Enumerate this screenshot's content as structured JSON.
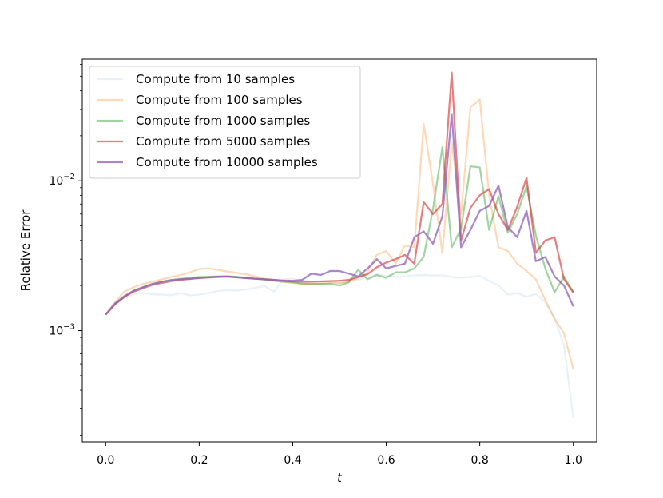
{
  "chart_data": {
    "type": "line",
    "title": "",
    "xlabel": "t",
    "ylabel": "Relative Error",
    "yscale": "log",
    "xlim": [
      -0.05,
      1.05
    ],
    "ylim": [
      0.00018,
      0.065
    ],
    "xticks": [
      0.0,
      0.2,
      0.4,
      0.6,
      0.8,
      1.0
    ],
    "xtick_labels": [
      "0.0",
      "0.2",
      "0.4",
      "0.6",
      "0.8",
      "1.0"
    ],
    "yticks": [
      0.001,
      0.01
    ],
    "ytick_labels": [
      {
        "base": "10",
        "exp": "−3"
      },
      {
        "base": "10",
        "exp": "−2"
      }
    ],
    "grid": false,
    "legend_position": "top-left",
    "x": [
      0.0,
      0.02,
      0.04,
      0.06,
      0.08,
      0.1,
      0.12,
      0.14,
      0.16,
      0.18,
      0.2,
      0.22,
      0.24,
      0.26,
      0.28,
      0.3,
      0.32,
      0.34,
      0.36,
      0.38,
      0.4,
      0.42,
      0.44,
      0.46,
      0.48,
      0.5,
      0.52,
      0.54,
      0.56,
      0.58,
      0.6,
      0.62,
      0.64,
      0.66,
      0.68,
      0.7,
      0.72,
      0.74,
      0.76,
      0.78,
      0.8,
      0.82,
      0.84,
      0.86,
      0.88,
      0.9,
      0.92,
      0.94,
      0.96,
      0.98,
      1.0
    ],
    "series": [
      {
        "name": "Compute from 10 samples",
        "color": "#1f77b4",
        "opacity": 0.1,
        "values": [
          0.00128,
          0.0015,
          0.00165,
          0.00175,
          0.00178,
          0.00175,
          0.00174,
          0.00172,
          0.00178,
          0.00172,
          0.00174,
          0.00178,
          0.00184,
          0.00186,
          0.00185,
          0.00188,
          0.00193,
          0.00198,
          0.00182,
          0.0022,
          0.00222,
          0.00216,
          0.00213,
          0.00213,
          0.00212,
          0.00208,
          0.00214,
          0.00218,
          0.00228,
          0.00238,
          0.00232,
          0.00228,
          0.0023,
          0.00234,
          0.00235,
          0.00233,
          0.00234,
          0.00228,
          0.00225,
          0.00228,
          0.00232,
          0.00215,
          0.002,
          0.00174,
          0.00178,
          0.00168,
          0.00176,
          0.00155,
          0.0012,
          0.0008,
          0.00026
        ]
      },
      {
        "name": "Compute from 100 samples",
        "color": "#ff7f0e",
        "opacity": 0.3,
        "values": [
          0.00128,
          0.00155,
          0.00182,
          0.00195,
          0.00205,
          0.00212,
          0.0022,
          0.00228,
          0.00235,
          0.00245,
          0.00258,
          0.0026,
          0.00255,
          0.00248,
          0.00243,
          0.00238,
          0.0023,
          0.00222,
          0.00218,
          0.00212,
          0.00208,
          0.00205,
          0.00205,
          0.00206,
          0.00208,
          0.00207,
          0.00212,
          0.00225,
          0.00245,
          0.0032,
          0.0034,
          0.0028,
          0.0037,
          0.0036,
          0.024,
          0.0095,
          0.0033,
          0.018,
          0.006,
          0.031,
          0.035,
          0.008,
          0.0036,
          0.0034,
          0.0028,
          0.0025,
          0.0022,
          0.0016,
          0.0012,
          0.00096,
          0.00055
        ]
      },
      {
        "name": "Compute from 1000 samples",
        "color": "#2ca02c",
        "opacity": 0.45,
        "values": [
          0.00128,
          0.0015,
          0.00168,
          0.00185,
          0.00195,
          0.00205,
          0.00212,
          0.00218,
          0.00222,
          0.00225,
          0.00228,
          0.00229,
          0.0023,
          0.0023,
          0.00229,
          0.00225,
          0.00222,
          0.00219,
          0.00215,
          0.00212,
          0.0021,
          0.00206,
          0.00205,
          0.00205,
          0.00205,
          0.002,
          0.0021,
          0.00255,
          0.0022,
          0.00235,
          0.00225,
          0.00245,
          0.00245,
          0.0026,
          0.0031,
          0.0065,
          0.0168,
          0.0036,
          0.0048,
          0.0125,
          0.0123,
          0.0047,
          0.0079,
          0.0045,
          0.006,
          0.0092,
          0.0043,
          0.0026,
          0.0018,
          0.0023,
          0.0018
        ]
      },
      {
        "name": "Compute from 5000 samples",
        "color": "#d62728",
        "opacity": 0.6,
        "values": [
          0.00128,
          0.0015,
          0.00168,
          0.00182,
          0.00192,
          0.00202,
          0.00208,
          0.00214,
          0.00218,
          0.00221,
          0.00224,
          0.00226,
          0.00228,
          0.00229,
          0.00227,
          0.00224,
          0.00222,
          0.0022,
          0.00218,
          0.00215,
          0.00213,
          0.00212,
          0.00212,
          0.00213,
          0.00214,
          0.00215,
          0.00218,
          0.00228,
          0.00238,
          0.00265,
          0.00285,
          0.003,
          0.0032,
          0.0028,
          0.0072,
          0.006,
          0.007,
          0.053,
          0.004,
          0.0066,
          0.008,
          0.0088,
          0.006,
          0.0047,
          0.0067,
          0.0105,
          0.0033,
          0.004,
          0.0042,
          0.0022,
          0.0018
        ]
      },
      {
        "name": "Compute from 10000 samples",
        "color": "#9467bd",
        "opacity": 0.8,
        "values": [
          0.00128,
          0.00152,
          0.0017,
          0.00185,
          0.00195,
          0.00205,
          0.00212,
          0.00217,
          0.0022,
          0.00222,
          0.00225,
          0.00227,
          0.00229,
          0.0023,
          0.00227,
          0.00224,
          0.00222,
          0.0022,
          0.00218,
          0.00216,
          0.00215,
          0.00218,
          0.0024,
          0.00235,
          0.0025,
          0.0025,
          0.0024,
          0.0023,
          0.0026,
          0.003,
          0.0026,
          0.0027,
          0.0028,
          0.0042,
          0.0046,
          0.0038,
          0.0058,
          0.028,
          0.0036,
          0.0047,
          0.0063,
          0.0068,
          0.0093,
          0.0049,
          0.0042,
          0.0063,
          0.0029,
          0.0031,
          0.0023,
          0.002,
          0.00145
        ]
      }
    ]
  }
}
